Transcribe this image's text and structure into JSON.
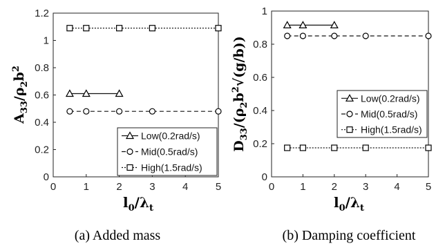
{
  "chart_data": [
    {
      "type": "line",
      "caption": "(a) Added mass",
      "xlabel": "l0/λt",
      "ylabel": "A33/ρ2b2",
      "xlim": [
        0,
        5
      ],
      "ylim": [
        0,
        1.2
      ],
      "xticks": [
        "0",
        "1",
        "2",
        "3",
        "4",
        "5"
      ],
      "yticks": [
        "0",
        "0.2",
        "0.4",
        "0.6",
        "0.8",
        "1",
        "1.2"
      ],
      "legend_position": "bottom-right",
      "series": [
        {
          "name": "Low(0.2rad/s)",
          "marker": "triangle",
          "line": "solid",
          "x": [
            0.5,
            1,
            2
          ],
          "y": [
            0.61,
            0.61,
            0.61
          ]
        },
        {
          "name": "Mid(0.5rad/s)",
          "marker": "circle",
          "line": "dashed",
          "x": [
            0.5,
            1,
            2,
            3,
            5
          ],
          "y": [
            0.48,
            0.48,
            0.48,
            0.48,
            0.48
          ]
        },
        {
          "name": "High(1.5rad/s)",
          "marker": "square",
          "line": "dotted",
          "x": [
            0.5,
            1,
            2,
            3,
            5
          ],
          "y": [
            1.09,
            1.09,
            1.09,
            1.09,
            1.09
          ]
        }
      ]
    },
    {
      "type": "line",
      "caption": "(b) Damping coefficient",
      "xlabel": "l0/λt",
      "ylabel": "D33/(ρ2b2√(g/b))",
      "xlim": [
        0,
        5
      ],
      "ylim": [
        0,
        1
      ],
      "xticks": [
        "0",
        "1",
        "2",
        "3",
        "4",
        "5"
      ],
      "yticks": [
        "0",
        "0.2",
        "0.4",
        "0.6",
        "0.8",
        "1"
      ],
      "legend_position": "upper-right",
      "series": [
        {
          "name": "Low(0.2rad/s)",
          "marker": "triangle",
          "line": "solid",
          "x": [
            0.5,
            1,
            2
          ],
          "y": [
            0.915,
            0.915,
            0.915
          ]
        },
        {
          "name": "Mid(0.5rad/s)",
          "marker": "circle",
          "line": "dashed",
          "x": [
            0.5,
            1,
            2,
            3,
            5
          ],
          "y": [
            0.85,
            0.85,
            0.85,
            0.85,
            0.85
          ]
        },
        {
          "name": "High(1.5rad/s)",
          "marker": "square",
          "line": "dotted",
          "x": [
            0.5,
            1,
            2,
            3,
            5
          ],
          "y": [
            0.175,
            0.175,
            0.175,
            0.175,
            0.175
          ]
        }
      ]
    }
  ]
}
